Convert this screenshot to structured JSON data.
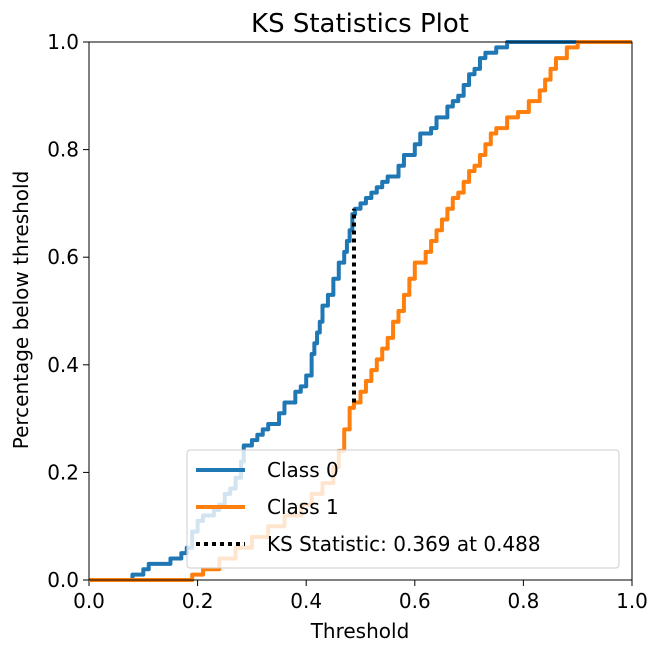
{
  "chart_data": {
    "type": "line",
    "title": "KS Statistics Plot",
    "xlabel": "Threshold",
    "ylabel": "Percentage below threshold",
    "xlim": [
      0.0,
      1.0
    ],
    "ylim": [
      0.0,
      1.0
    ],
    "xticks": [
      "0.0",
      "0.2",
      "0.4",
      "0.6",
      "0.8",
      "1.0"
    ],
    "yticks": [
      "0.0",
      "0.2",
      "0.4",
      "0.6",
      "0.8",
      "1.0"
    ],
    "grid": false,
    "legend_position": "lower-right",
    "series": [
      {
        "name": "Class 0",
        "color": "#1f77b4",
        "points": [
          [
            0.0,
            0.0
          ],
          [
            0.08,
            0.01
          ],
          [
            0.1,
            0.02
          ],
          [
            0.11,
            0.03
          ],
          [
            0.15,
            0.04
          ],
          [
            0.17,
            0.05
          ],
          [
            0.18,
            0.06
          ],
          [
            0.19,
            0.09
          ],
          [
            0.2,
            0.11
          ],
          [
            0.21,
            0.12
          ],
          [
            0.23,
            0.13
          ],
          [
            0.24,
            0.14
          ],
          [
            0.25,
            0.16
          ],
          [
            0.26,
            0.17
          ],
          [
            0.27,
            0.19
          ],
          [
            0.28,
            0.22
          ],
          [
            0.285,
            0.25
          ],
          [
            0.3,
            0.26
          ],
          [
            0.31,
            0.27
          ],
          [
            0.32,
            0.28
          ],
          [
            0.33,
            0.29
          ],
          [
            0.35,
            0.31
          ],
          [
            0.36,
            0.33
          ],
          [
            0.38,
            0.35
          ],
          [
            0.39,
            0.36
          ],
          [
            0.4,
            0.38
          ],
          [
            0.41,
            0.42
          ],
          [
            0.415,
            0.44
          ],
          [
            0.42,
            0.46
          ],
          [
            0.425,
            0.48
          ],
          [
            0.43,
            0.51
          ],
          [
            0.44,
            0.53
          ],
          [
            0.45,
            0.56
          ],
          [
            0.46,
            0.59
          ],
          [
            0.47,
            0.61
          ],
          [
            0.475,
            0.63
          ],
          [
            0.48,
            0.65
          ],
          [
            0.485,
            0.68
          ],
          [
            0.49,
            0.69
          ],
          [
            0.5,
            0.7
          ],
          [
            0.51,
            0.71
          ],
          [
            0.52,
            0.72
          ],
          [
            0.53,
            0.73
          ],
          [
            0.54,
            0.74
          ],
          [
            0.55,
            0.75
          ],
          [
            0.57,
            0.77
          ],
          [
            0.58,
            0.79
          ],
          [
            0.6,
            0.81
          ],
          [
            0.61,
            0.83
          ],
          [
            0.63,
            0.84
          ],
          [
            0.64,
            0.86
          ],
          [
            0.66,
            0.88
          ],
          [
            0.67,
            0.89
          ],
          [
            0.68,
            0.9
          ],
          [
            0.69,
            0.92
          ],
          [
            0.7,
            0.94
          ],
          [
            0.71,
            0.95
          ],
          [
            0.72,
            0.97
          ],
          [
            0.73,
            0.98
          ],
          [
            0.75,
            0.99
          ],
          [
            0.77,
            1.0
          ],
          [
            1.0,
            1.0
          ]
        ]
      },
      {
        "name": "Class 1",
        "color": "#ff7f0e",
        "points": [
          [
            0.0,
            0.0
          ],
          [
            0.18,
            0.0
          ],
          [
            0.19,
            0.01
          ],
          [
            0.21,
            0.02
          ],
          [
            0.24,
            0.04
          ],
          [
            0.27,
            0.06
          ],
          [
            0.3,
            0.08
          ],
          [
            0.33,
            0.1
          ],
          [
            0.36,
            0.12
          ],
          [
            0.39,
            0.14
          ],
          [
            0.41,
            0.16
          ],
          [
            0.43,
            0.18
          ],
          [
            0.45,
            0.21
          ],
          [
            0.46,
            0.24
          ],
          [
            0.47,
            0.28
          ],
          [
            0.48,
            0.32
          ],
          [
            0.488,
            0.33
          ],
          [
            0.5,
            0.35
          ],
          [
            0.51,
            0.37
          ],
          [
            0.52,
            0.39
          ],
          [
            0.53,
            0.41
          ],
          [
            0.54,
            0.43
          ],
          [
            0.55,
            0.45
          ],
          [
            0.56,
            0.48
          ],
          [
            0.57,
            0.5
          ],
          [
            0.58,
            0.53
          ],
          [
            0.59,
            0.56
          ],
          [
            0.6,
            0.59
          ],
          [
            0.62,
            0.61
          ],
          [
            0.63,
            0.63
          ],
          [
            0.64,
            0.65
          ],
          [
            0.65,
            0.67
          ],
          [
            0.66,
            0.69
          ],
          [
            0.67,
            0.71
          ],
          [
            0.68,
            0.72
          ],
          [
            0.69,
            0.74
          ],
          [
            0.7,
            0.76
          ],
          [
            0.71,
            0.77
          ],
          [
            0.72,
            0.79
          ],
          [
            0.73,
            0.81
          ],
          [
            0.74,
            0.83
          ],
          [
            0.75,
            0.84
          ],
          [
            0.77,
            0.86
          ],
          [
            0.79,
            0.87
          ],
          [
            0.81,
            0.89
          ],
          [
            0.83,
            0.91
          ],
          [
            0.84,
            0.93
          ],
          [
            0.85,
            0.95
          ],
          [
            0.86,
            0.97
          ],
          [
            0.88,
            0.99
          ],
          [
            0.9,
            1.0
          ],
          [
            1.0,
            1.0
          ]
        ]
      }
    ],
    "ks_statistic": {
      "label": "KS Statistic: 0.369 at 0.488",
      "x": 0.488,
      "y_low": 0.33,
      "y_high": 0.69,
      "color": "#000000"
    }
  }
}
